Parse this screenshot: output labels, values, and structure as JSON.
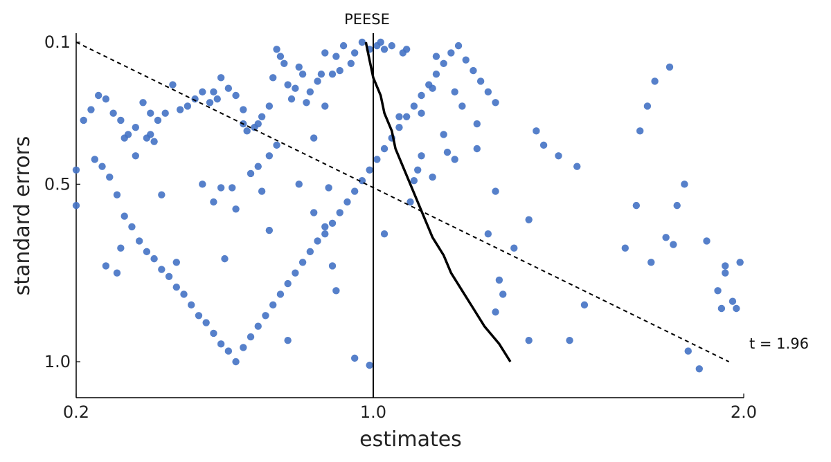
{
  "chart_data": {
    "type": "scatter",
    "xlabel": "estimates",
    "ylabel": "standard errors",
    "xlim": [
      0.2,
      2.0
    ],
    "ylim": [
      0.09,
      1.1
    ],
    "y_inverted": true,
    "x_ticks": [
      0.2,
      1.0,
      2.0
    ],
    "x_tick_labels": [
      "0.2",
      "1.0",
      "2.0"
    ],
    "y_ticks": [
      0.1,
      0.5,
      1.0
    ],
    "y_tick_labels": [
      "0.1",
      "0.5",
      "1.0"
    ],
    "grid": false,
    "colors": {
      "points": "#4472c4",
      "lines": "#000000"
    },
    "annotations": {
      "peese_label": "PEESE",
      "t_label": "t = 1.96"
    },
    "reference_line": {
      "x": 1.0
    },
    "t_line": {
      "x": [
        0.2,
        1.96
      ],
      "y": [
        0.1,
        1.0
      ]
    },
    "peese_curve": [
      {
        "x": 0.98,
        "y": 0.1
      },
      {
        "x": 0.99,
        "y": 0.15
      },
      {
        "x": 1.0,
        "y": 0.2
      },
      {
        "x": 1.02,
        "y": 0.25
      },
      {
        "x": 1.03,
        "y": 0.3
      },
      {
        "x": 1.05,
        "y": 0.35
      },
      {
        "x": 1.06,
        "y": 0.4
      },
      {
        "x": 1.08,
        "y": 0.45
      },
      {
        "x": 1.1,
        "y": 0.5
      },
      {
        "x": 1.12,
        "y": 0.55
      },
      {
        "x": 1.14,
        "y": 0.6
      },
      {
        "x": 1.16,
        "y": 0.65
      },
      {
        "x": 1.19,
        "y": 0.7
      },
      {
        "x": 1.21,
        "y": 0.75
      },
      {
        "x": 1.24,
        "y": 0.8
      },
      {
        "x": 1.27,
        "y": 0.85
      },
      {
        "x": 1.3,
        "y": 0.9
      },
      {
        "x": 1.34,
        "y": 0.95
      },
      {
        "x": 1.37,
        "y": 1.0
      }
    ],
    "points": [
      [
        0.2,
        0.46
      ],
      [
        0.2,
        0.56
      ],
      [
        0.28,
        0.73
      ],
      [
        0.33,
        0.37
      ],
      [
        0.32,
        0.68
      ],
      [
        0.31,
        0.75
      ],
      [
        0.36,
        0.42
      ],
      [
        0.39,
        0.37
      ],
      [
        0.41,
        0.38
      ],
      [
        0.4,
        0.36
      ],
      [
        0.43,
        0.53
      ],
      [
        0.47,
        0.72
      ],
      [
        0.54,
        0.5
      ],
      [
        0.57,
        0.24
      ],
      [
        0.57,
        0.55
      ],
      [
        0.59,
        0.51
      ],
      [
        0.6,
        0.71
      ],
      [
        0.62,
        0.51
      ],
      [
        0.63,
        0.57
      ],
      [
        0.65,
        0.33
      ],
      [
        0.67,
        0.47
      ],
      [
        0.69,
        0.45
      ],
      [
        0.7,
        0.52
      ],
      [
        0.72,
        0.42
      ],
      [
        0.72,
        0.63
      ],
      [
        0.74,
        0.39
      ],
      [
        0.77,
        0.94
      ],
      [
        0.8,
        0.5
      ],
      [
        0.84,
        0.58
      ],
      [
        0.87,
        0.62
      ],
      [
        0.88,
        0.51
      ],
      [
        0.84,
        0.37
      ],
      [
        0.87,
        0.28
      ],
      [
        0.89,
        0.73
      ],
      [
        0.9,
        0.8
      ],
      [
        0.95,
        0.99
      ],
      [
        0.99,
        1.01
      ],
      [
        1.03,
        0.64
      ],
      [
        1.07,
        0.31
      ],
      [
        1.13,
        0.3
      ],
      [
        1.16,
        0.23
      ],
      [
        1.17,
        0.14
      ],
      [
        1.28,
        0.4
      ],
      [
        1.33,
        0.86
      ],
      [
        1.35,
        0.81
      ],
      [
        1.42,
        0.94
      ],
      [
        1.53,
        0.94
      ],
      [
        1.55,
        0.45
      ],
      [
        1.8,
        0.17
      ],
      [
        1.76,
        0.21
      ],
      [
        1.79,
        0.65
      ],
      [
        1.81,
        0.67
      ],
      [
        1.85,
        0.97
      ],
      [
        1.9,
        0.66
      ],
      [
        1.93,
        0.8
      ],
      [
        1.95,
        0.75
      ],
      [
        1.98,
        0.85
      ],
      [
        1.84,
        0.5
      ],
      [
        1.82,
        0.56
      ],
      [
        1.88,
        1.02
      ],
      [
        1.94,
        0.85
      ],
      [
        1.97,
        0.83
      ],
      [
        1.99,
        0.72
      ],
      [
        1.95,
        0.73
      ],
      [
        1.75,
        0.72
      ],
      [
        1.68,
        0.68
      ],
      [
        1.71,
        0.56
      ],
      [
        1.74,
        0.28
      ],
      [
        1.72,
        0.35
      ],
      [
        1.57,
        0.84
      ],
      [
        1.5,
        0.42
      ],
      [
        1.46,
        0.39
      ],
      [
        1.44,
        0.35
      ],
      [
        1.42,
        0.6
      ],
      [
        1.38,
        0.68
      ],
      [
        1.34,
        0.77
      ],
      [
        1.33,
        0.52
      ],
      [
        1.31,
        0.64
      ],
      [
        1.28,
        0.33
      ],
      [
        1.24,
        0.28
      ],
      [
        1.22,
        0.24
      ],
      [
        1.2,
        0.41
      ],
      [
        1.22,
        0.43
      ],
      [
        1.19,
        0.36
      ],
      [
        1.16,
        0.48
      ],
      [
        1.13,
        0.42
      ],
      [
        1.12,
        0.46
      ],
      [
        1.11,
        0.49
      ],
      [
        1.1,
        0.55
      ],
      [
        1.09,
        0.12
      ],
      [
        1.08,
        0.13
      ],
      [
        1.05,
        0.11
      ],
      [
        1.03,
        0.12
      ],
      [
        1.02,
        0.1
      ],
      [
        1.01,
        0.11
      ],
      [
        0.99,
        0.12
      ],
      [
        0.97,
        0.1
      ],
      [
        0.95,
        0.13
      ],
      [
        0.94,
        0.16
      ],
      [
        0.92,
        0.11
      ],
      [
        0.91,
        0.18
      ],
      [
        0.9,
        0.14
      ],
      [
        0.89,
        0.19
      ],
      [
        0.87,
        0.13
      ],
      [
        0.86,
        0.19
      ],
      [
        0.85,
        0.21
      ],
      [
        0.83,
        0.24
      ],
      [
        0.82,
        0.27
      ],
      [
        0.81,
        0.19
      ],
      [
        0.8,
        0.17
      ],
      [
        0.79,
        0.23
      ],
      [
        0.78,
        0.26
      ],
      [
        0.77,
        0.22
      ],
      [
        0.76,
        0.16
      ],
      [
        0.75,
        0.14
      ],
      [
        0.74,
        0.12
      ],
      [
        0.73,
        0.2
      ],
      [
        0.72,
        0.28
      ],
      [
        0.7,
        0.31
      ],
      [
        0.69,
        0.33
      ],
      [
        0.68,
        0.34
      ],
      [
        0.66,
        0.35
      ],
      [
        0.65,
        0.29
      ],
      [
        0.63,
        0.25
      ],
      [
        0.61,
        0.23
      ],
      [
        0.59,
        0.2
      ],
      [
        0.58,
        0.26
      ],
      [
        0.56,
        0.27
      ],
      [
        0.54,
        0.24
      ],
      [
        0.52,
        0.26
      ],
      [
        0.5,
        0.28
      ],
      [
        0.48,
        0.29
      ],
      [
        0.46,
        0.22
      ],
      [
        0.44,
        0.3
      ],
      [
        0.42,
        0.32
      ],
      [
        0.4,
        0.3
      ],
      [
        0.38,
        0.27
      ],
      [
        0.36,
        0.34
      ],
      [
        0.34,
        0.36
      ],
      [
        0.32,
        0.32
      ],
      [
        0.3,
        0.3
      ],
      [
        0.28,
        0.26
      ],
      [
        0.26,
        0.25
      ],
      [
        0.24,
        0.29
      ],
      [
        0.22,
        0.32
      ],
      [
        0.25,
        0.43
      ],
      [
        0.27,
        0.45
      ],
      [
        0.29,
        0.48
      ],
      [
        0.31,
        0.53
      ],
      [
        0.33,
        0.59
      ],
      [
        0.35,
        0.62
      ],
      [
        0.37,
        0.66
      ],
      [
        0.39,
        0.69
      ],
      [
        0.41,
        0.71
      ],
      [
        0.43,
        0.74
      ],
      [
        0.45,
        0.76
      ],
      [
        0.47,
        0.79
      ],
      [
        0.49,
        0.81
      ],
      [
        0.51,
        0.84
      ],
      [
        0.53,
        0.87
      ],
      [
        0.55,
        0.89
      ],
      [
        0.57,
        0.92
      ],
      [
        0.59,
        0.95
      ],
      [
        0.61,
        0.97
      ],
      [
        0.63,
        1.0
      ],
      [
        0.65,
        0.96
      ],
      [
        0.67,
        0.93
      ],
      [
        0.69,
        0.9
      ],
      [
        0.71,
        0.87
      ],
      [
        0.73,
        0.84
      ],
      [
        0.75,
        0.81
      ],
      [
        0.77,
        0.78
      ],
      [
        0.79,
        0.75
      ],
      [
        0.81,
        0.72
      ],
      [
        0.83,
        0.69
      ],
      [
        0.85,
        0.66
      ],
      [
        0.87,
        0.64
      ],
      [
        0.89,
        0.61
      ],
      [
        0.91,
        0.58
      ],
      [
        0.93,
        0.55
      ],
      [
        0.95,
        0.52
      ],
      [
        0.97,
        0.49
      ],
      [
        0.99,
        0.46
      ],
      [
        1.01,
        0.43
      ],
      [
        1.03,
        0.4
      ],
      [
        1.05,
        0.37
      ],
      [
        1.07,
        0.34
      ],
      [
        1.09,
        0.31
      ],
      [
        1.11,
        0.28
      ],
      [
        1.13,
        0.25
      ],
      [
        1.15,
        0.22
      ],
      [
        1.17,
        0.19
      ],
      [
        1.19,
        0.16
      ],
      [
        1.21,
        0.13
      ],
      [
        1.23,
        0.11
      ],
      [
        1.25,
        0.15
      ],
      [
        1.27,
        0.18
      ],
      [
        1.29,
        0.21
      ],
      [
        1.31,
        0.24
      ],
      [
        1.33,
        0.27
      ]
    ]
  }
}
